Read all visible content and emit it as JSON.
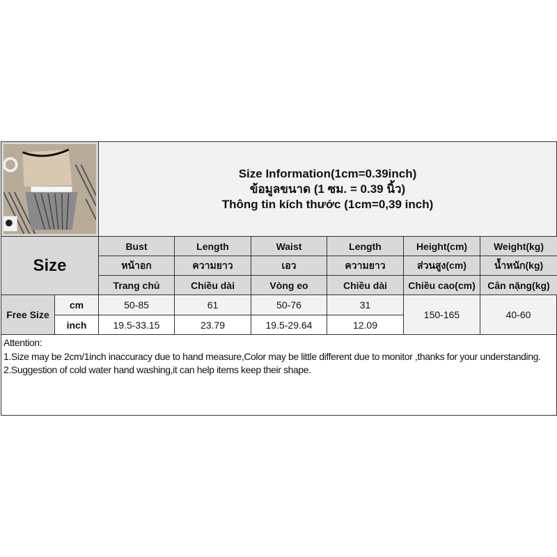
{
  "title": {
    "line1": "Size Information(1cm=0.39inch)",
    "line2": "ข้อมูลขนาด (1 ซม. = 0.39 นิ้ว)",
    "line3": "Thông tin kích thước (1cm=0,39 inch)"
  },
  "size_label": "Size",
  "columns": [
    {
      "en": "Bust",
      "th": "หน้าอก",
      "vi": "Trang chủ"
    },
    {
      "en": "Length",
      "th": "ความยาว",
      "vi": "Chiều dài"
    },
    {
      "en": "Waist",
      "th": "เอว",
      "vi": "Vòng eo"
    },
    {
      "en": "Length",
      "th": "ความยาว",
      "vi": "Chiều dài"
    },
    {
      "en": "Height(cm)",
      "th": "ส่วนสูง(cm)",
      "vi": "Chiều cao(cm)"
    },
    {
      "en": "Weight(kg)",
      "th": "น้ำหนัก(kg)",
      "vi": "Cân nặng(kg)"
    }
  ],
  "rows": {
    "size_name": "Free Size",
    "cm": {
      "unit": "cm",
      "values": [
        "50-85",
        "61",
        "50-76",
        "31"
      ]
    },
    "inch": {
      "unit": "inch",
      "values": [
        "19.5-33.15",
        "23.79",
        "19.5-29.64",
        "12.09"
      ]
    },
    "height": "150-165",
    "weight": "40-60"
  },
  "notes": {
    "heading": "Attention:",
    "line1": "1.Size may be 2cm/1inch inaccuracy due to hand measure,Color may be little different due to monitor ,thanks for your understanding.",
    "line2": "2.Suggestion of cold water hand washing,it can help items keep their shape."
  }
}
